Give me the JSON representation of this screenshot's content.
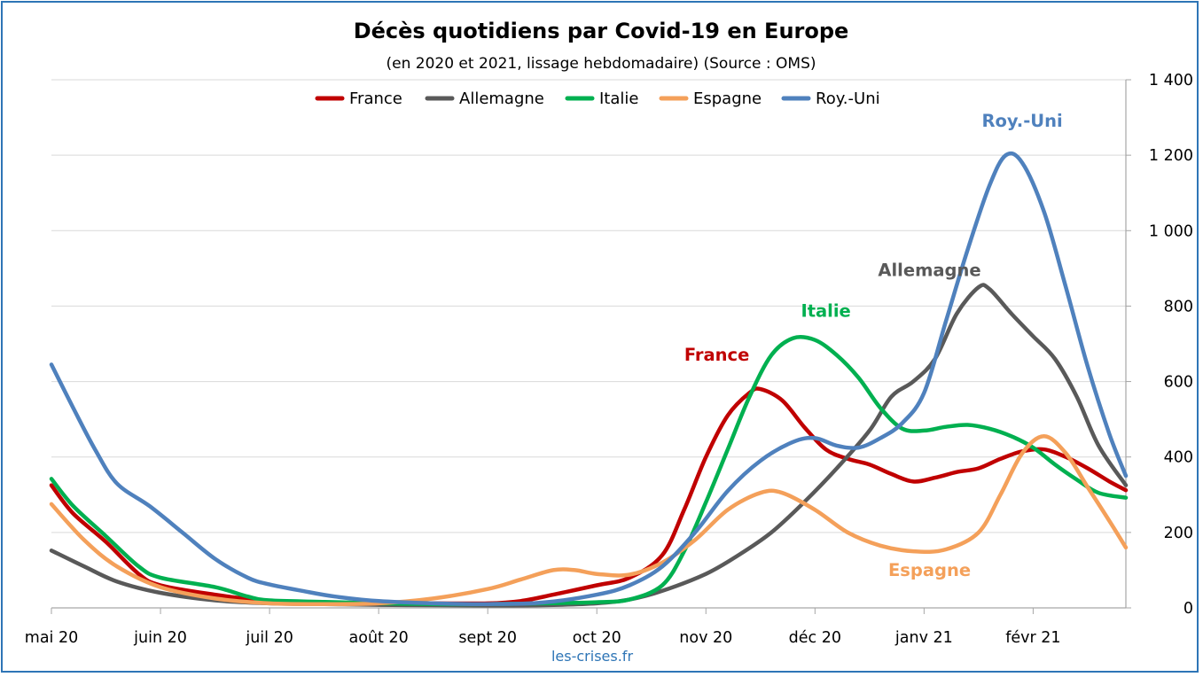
{
  "chart_data": {
    "type": "line",
    "title": "Décès quotidiens par Covid-19 en Europe",
    "subtitle": "(en 2020 et 2021, lissage hebdomadaire) (Source : OMS)",
    "source_note": "les-crises.fr",
    "x_tick_labels": [
      "mai 20",
      "juin 20",
      "juil 20",
      "août 20",
      "sept 20",
      "oct 20",
      "nov 20",
      "déc 20",
      "janv 21",
      "févr 21"
    ],
    "y_tick_labels": [
      "0",
      "200",
      "400",
      "600",
      "800",
      "1 000",
      "1 200",
      "1 400"
    ],
    "ylim": [
      0,
      1400
    ],
    "y_axis_position": "right",
    "grid": true,
    "legend_position": "top",
    "x_unit": "months since 2020-05-01",
    "xlim": [
      0,
      9.85
    ],
    "series": [
      {
        "name": "France",
        "color": "#C00000",
        "annotation": "France",
        "annotation_at": [
          6.1,
          655
        ],
        "points": [
          [
            0,
            325
          ],
          [
            0.2,
            250
          ],
          [
            0.5,
            175
          ],
          [
            0.8,
            90
          ],
          [
            1,
            60
          ],
          [
            1.5,
            35
          ],
          [
            2,
            18
          ],
          [
            2.5,
            14
          ],
          [
            3,
            12
          ],
          [
            3.5,
            12
          ],
          [
            4,
            12
          ],
          [
            4.3,
            18
          ],
          [
            4.6,
            35
          ],
          [
            5,
            60
          ],
          [
            5.3,
            80
          ],
          [
            5.6,
            140
          ],
          [
            5.8,
            260
          ],
          [
            6,
            400
          ],
          [
            6.2,
            510
          ],
          [
            6.4,
            570
          ],
          [
            6.5,
            580
          ],
          [
            6.7,
            550
          ],
          [
            6.9,
            480
          ],
          [
            7.1,
            420
          ],
          [
            7.3,
            395
          ],
          [
            7.5,
            380
          ],
          [
            7.7,
            355
          ],
          [
            7.9,
            335
          ],
          [
            8.1,
            345
          ],
          [
            8.3,
            360
          ],
          [
            8.5,
            370
          ],
          [
            8.7,
            395
          ],
          [
            8.9,
            415
          ],
          [
            9.1,
            420
          ],
          [
            9.3,
            400
          ],
          [
            9.5,
            370
          ],
          [
            9.7,
            335
          ],
          [
            9.85,
            312
          ]
        ]
      },
      {
        "name": "Allemagne",
        "color": "#595959",
        "annotation": "Allemagne",
        "annotation_at": [
          8.05,
          880
        ],
        "points": [
          [
            0,
            152
          ],
          [
            0.3,
            110
          ],
          [
            0.6,
            70
          ],
          [
            1,
            40
          ],
          [
            1.5,
            20
          ],
          [
            2,
            12
          ],
          [
            2.5,
            10
          ],
          [
            3,
            8
          ],
          [
            3.5,
            7
          ],
          [
            4,
            6
          ],
          [
            4.5,
            7
          ],
          [
            5,
            12
          ],
          [
            5.3,
            22
          ],
          [
            5.6,
            45
          ],
          [
            6,
            90
          ],
          [
            6.3,
            140
          ],
          [
            6.6,
            200
          ],
          [
            6.9,
            280
          ],
          [
            7.2,
            370
          ],
          [
            7.5,
            470
          ],
          [
            7.7,
            560
          ],
          [
            7.9,
            600
          ],
          [
            8.1,
            660
          ],
          [
            8.3,
            780
          ],
          [
            8.5,
            850
          ],
          [
            8.6,
            845
          ],
          [
            8.8,
            780
          ],
          [
            9,
            720
          ],
          [
            9.2,
            660
          ],
          [
            9.4,
            560
          ],
          [
            9.6,
            430
          ],
          [
            9.85,
            325
          ]
        ]
      },
      {
        "name": "Italie",
        "color": "#00B050",
        "annotation": "Italie",
        "annotation_at": [
          7.1,
          772
        ],
        "points": [
          [
            0,
            342
          ],
          [
            0.2,
            270
          ],
          [
            0.5,
            190
          ],
          [
            0.8,
            110
          ],
          [
            1,
            80
          ],
          [
            1.5,
            55
          ],
          [
            1.8,
            30
          ],
          [
            2,
            20
          ],
          [
            2.5,
            16
          ],
          [
            3,
            12
          ],
          [
            3.5,
            10
          ],
          [
            4,
            10
          ],
          [
            4.5,
            12
          ],
          [
            5,
            15
          ],
          [
            5.3,
            22
          ],
          [
            5.6,
            60
          ],
          [
            5.8,
            150
          ],
          [
            6,
            280
          ],
          [
            6.2,
            420
          ],
          [
            6.4,
            560
          ],
          [
            6.6,
            670
          ],
          [
            6.8,
            715
          ],
          [
            7,
            710
          ],
          [
            7.2,
            670
          ],
          [
            7.4,
            610
          ],
          [
            7.6,
            530
          ],
          [
            7.8,
            475
          ],
          [
            8,
            470
          ],
          [
            8.2,
            480
          ],
          [
            8.4,
            485
          ],
          [
            8.6,
            475
          ],
          [
            8.8,
            455
          ],
          [
            9,
            425
          ],
          [
            9.2,
            380
          ],
          [
            9.4,
            340
          ],
          [
            9.6,
            305
          ],
          [
            9.85,
            292
          ]
        ]
      },
      {
        "name": "Espagne",
        "color": "#F4A05A",
        "annotation": "Espagne",
        "annotation_at": [
          8.05,
          85
        ],
        "points": [
          [
            0,
            275
          ],
          [
            0.3,
            180
          ],
          [
            0.6,
            110
          ],
          [
            1,
            55
          ],
          [
            1.5,
            25
          ],
          [
            2,
            12
          ],
          [
            2.5,
            10
          ],
          [
            3,
            12
          ],
          [
            3.5,
            25
          ],
          [
            4,
            50
          ],
          [
            4.3,
            75
          ],
          [
            4.6,
            100
          ],
          [
            4.8,
            100
          ],
          [
            5,
            90
          ],
          [
            5.3,
            88
          ],
          [
            5.6,
            120
          ],
          [
            5.9,
            180
          ],
          [
            6.2,
            260
          ],
          [
            6.5,
            305
          ],
          [
            6.7,
            305
          ],
          [
            7,
            260
          ],
          [
            7.3,
            200
          ],
          [
            7.6,
            165
          ],
          [
            7.9,
            150
          ],
          [
            8.2,
            155
          ],
          [
            8.5,
            200
          ],
          [
            8.7,
            300
          ],
          [
            8.9,
            410
          ],
          [
            9.1,
            455
          ],
          [
            9.3,
            410
          ],
          [
            9.5,
            320
          ],
          [
            9.7,
            230
          ],
          [
            9.85,
            160
          ]
        ]
      },
      {
        "name": "Roy.-Uni",
        "color": "#4F81BD",
        "annotation": "Roy.-Uni",
        "annotation_at": [
          8.9,
          1275
        ],
        "points": [
          [
            0,
            645
          ],
          [
            0.2,
            530
          ],
          [
            0.4,
            420
          ],
          [
            0.6,
            330
          ],
          [
            0.9,
            270
          ],
          [
            1.2,
            200
          ],
          [
            1.5,
            130
          ],
          [
            1.8,
            80
          ],
          [
            2,
            62
          ],
          [
            2.3,
            45
          ],
          [
            2.6,
            30
          ],
          [
            3,
            18
          ],
          [
            3.5,
            12
          ],
          [
            4,
            10
          ],
          [
            4.5,
            14
          ],
          [
            5,
            35
          ],
          [
            5.3,
            60
          ],
          [
            5.6,
            110
          ],
          [
            5.9,
            200
          ],
          [
            6.2,
            310
          ],
          [
            6.5,
            390
          ],
          [
            6.8,
            440
          ],
          [
            7,
            450
          ],
          [
            7.2,
            430
          ],
          [
            7.4,
            425
          ],
          [
            7.6,
            450
          ],
          [
            7.8,
            490
          ],
          [
            8,
            570
          ],
          [
            8.2,
            760
          ],
          [
            8.4,
            950
          ],
          [
            8.6,
            1120
          ],
          [
            8.75,
            1200
          ],
          [
            8.9,
            1180
          ],
          [
            9.1,
            1050
          ],
          [
            9.3,
            850
          ],
          [
            9.5,
            640
          ],
          [
            9.7,
            460
          ],
          [
            9.85,
            350
          ]
        ]
      }
    ]
  }
}
